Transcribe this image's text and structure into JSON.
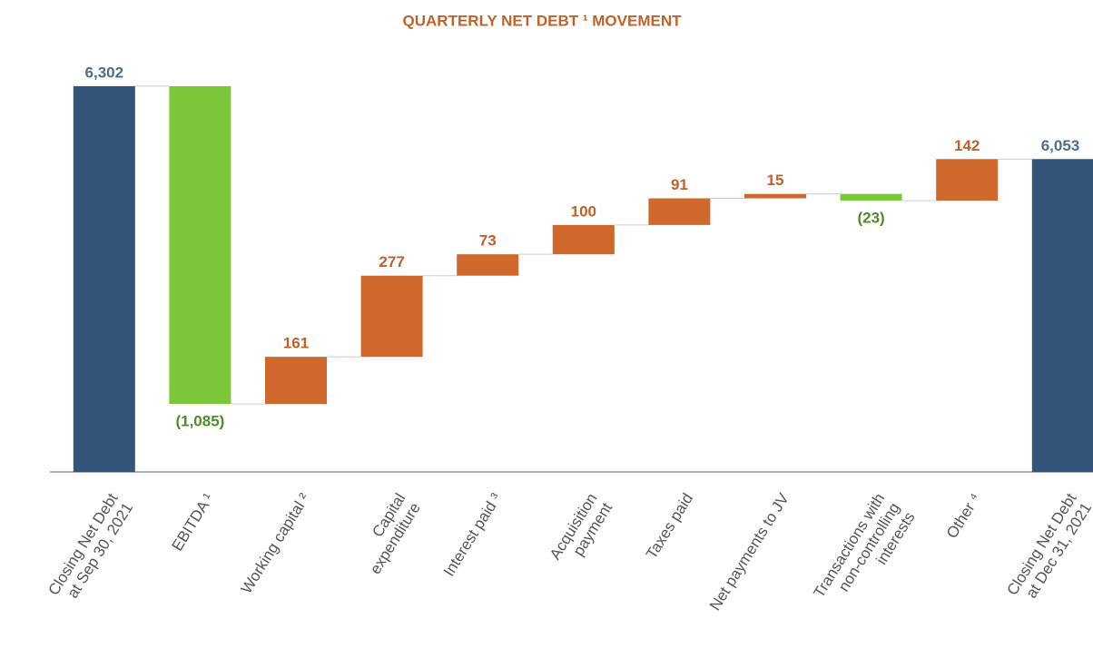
{
  "chart_data": {
    "type": "waterfall",
    "title": "QUARTERLY NET DEBT ¹ MOVEMENT",
    "categories": [
      "Closing Net Debt\nat Sep 30, 2021",
      "EBITDA ¹",
      "Working capital ²",
      "Capital\nexpenditure",
      "Interest paid ³",
      "Acquisition\npayment",
      "Taxes paid",
      "Net payments to JV",
      "Transactions with\nnon-controlling\ninterests",
      "Other ⁴",
      "Closing Net Debt\nat Dec 31, 2021"
    ],
    "values": [
      6302,
      -1085,
      161,
      277,
      73,
      100,
      91,
      15,
      -23,
      142,
      6053
    ],
    "value_labels": [
      "6,302",
      "(1,085)",
      "161",
      "277",
      "73",
      "100",
      "91",
      "15",
      "(23)",
      "142",
      "6,053"
    ],
    "colors": [
      "#34557a",
      "#7cc63a",
      "#d0682e",
      "#d0682e",
      "#d0682e",
      "#d0682e",
      "#d0682e",
      "#d0682e",
      "#7cc63a",
      "#d0682e",
      "#34557a"
    ],
    "label_colors": [
      "#4d6d90",
      "#4f8a2b",
      "#c0602a",
      "#c0602a",
      "#c0602a",
      "#c0602a",
      "#c0602a",
      "#c0602a",
      "#4f8a2b",
      "#c0602a",
      "#4d6d90"
    ],
    "ylim": [
      4985,
      6500
    ]
  }
}
